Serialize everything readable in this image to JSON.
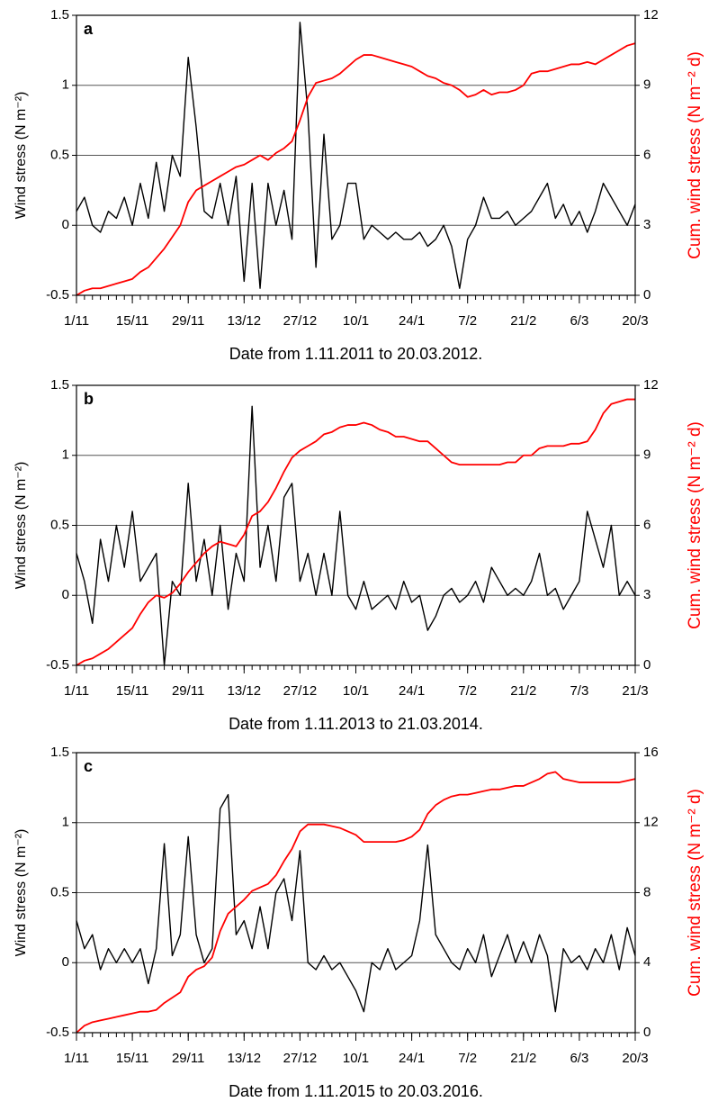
{
  "chart_data": [
    {
      "type": "line",
      "title": "a",
      "xlabel": "Date from 1.11.2011 to 20.03.2012.",
      "ylabel": "Wind stress (N m⁻²)",
      "y2label": "Cum. wind stress (N m⁻² d)",
      "x": [
        "1/11",
        "3/11",
        "5/11",
        "7/11",
        "9/11",
        "11/11",
        "13/11",
        "15/11",
        "17/11",
        "19/11",
        "21/11",
        "23/11",
        "25/11",
        "27/11",
        "29/11",
        "1/12",
        "3/12",
        "5/12",
        "7/12",
        "9/12",
        "11/12",
        "13/12",
        "15/12",
        "17/12",
        "19/12",
        "21/12",
        "23/12",
        "25/12",
        "27/12",
        "29/12",
        "31/12",
        "2/1",
        "4/1",
        "6/1",
        "8/1",
        "10/1",
        "12/1",
        "14/1",
        "16/1",
        "18/1",
        "20/1",
        "22/1",
        "24/1",
        "26/1",
        "28/1",
        "30/1",
        "1/2",
        "3/2",
        "5/2",
        "7/2",
        "9/2",
        "11/2",
        "13/2",
        "15/2",
        "17/2",
        "19/2",
        "21/2",
        "23/2",
        "25/2",
        "27/2",
        "29/2",
        "2/3",
        "4/3",
        "6/3",
        "8/3",
        "10/3",
        "12/3",
        "14/3",
        "16/3",
        "18/3",
        "20/3"
      ],
      "xticks": [
        "1/11",
        "15/11",
        "29/11",
        "13/12",
        "27/12",
        "10/1",
        "24/1",
        "7/2",
        "21/2",
        "6/3",
        "20/3"
      ],
      "ylim": [
        -0.5,
        1.5
      ],
      "yticks": [
        -0.5,
        0,
        0.5,
        1,
        1.5
      ],
      "y2lim": [
        0,
        12
      ],
      "y2ticks": [
        0,
        3,
        6,
        9,
        12
      ],
      "grid": true,
      "y2label_color": "#ff0000",
      "series": [
        {
          "color": "#000000",
          "values": [
            0.1,
            0.2,
            0.0,
            -0.05,
            0.1,
            0.05,
            0.2,
            0.0,
            0.3,
            0.05,
            0.45,
            0.1,
            0.5,
            0.35,
            1.2,
            0.7,
            0.1,
            0.05,
            0.3,
            0.0,
            0.35,
            -0.4,
            0.3,
            -0.45,
            0.3,
            0.0,
            0.25,
            -0.1,
            1.45,
            0.8,
            -0.3,
            0.65,
            -0.1,
            0.0,
            0.3,
            0.3,
            -0.1,
            0.0,
            -0.05,
            -0.1,
            -0.05,
            -0.1,
            -0.1,
            -0.05,
            -0.15,
            -0.1,
            0.0,
            -0.15,
            -0.45,
            -0.1,
            0.0,
            0.2,
            0.05,
            0.05,
            0.1,
            0.0,
            0.05,
            0.1,
            0.2,
            0.3,
            0.05,
            0.15,
            0.0,
            0.1,
            -0.05,
            0.1,
            0.3,
            0.2,
            0.1,
            0.0,
            0.15
          ]
        },
        {
          "color": "#ff0000",
          "axis": "y2",
          "values": [
            0,
            0.2,
            0.3,
            0.3,
            0.4,
            0.5,
            0.6,
            0.7,
            1.0,
            1.2,
            1.6,
            2.0,
            2.5,
            3.0,
            4.0,
            4.5,
            4.7,
            4.9,
            5.1,
            5.3,
            5.5,
            5.6,
            5.8,
            6.0,
            5.8,
            6.1,
            6.3,
            6.6,
            7.5,
            8.5,
            9.1,
            9.2,
            9.3,
            9.5,
            9.8,
            10.1,
            10.3,
            10.3,
            10.2,
            10.1,
            10.0,
            9.9,
            9.8,
            9.6,
            9.4,
            9.3,
            9.1,
            9.0,
            8.8,
            8.5,
            8.6,
            8.8,
            8.6,
            8.7,
            8.7,
            8.8,
            9.0,
            9.5,
            9.6,
            9.6,
            9.7,
            9.8,
            9.9,
            9.9,
            10.0,
            9.9,
            10.1,
            10.3,
            10.5,
            10.7,
            10.8
          ]
        }
      ]
    },
    {
      "type": "line",
      "title": "b",
      "xlabel": "Date from 1.11.2013 to 21.03.2014.",
      "ylabel": "Wind stress (N m⁻²)",
      "y2label": "Cum. wind stress (N m⁻² d)",
      "x": [
        "1/11",
        "3/11",
        "5/11",
        "7/11",
        "9/11",
        "11/11",
        "13/11",
        "15/11",
        "17/11",
        "19/11",
        "21/11",
        "23/11",
        "25/11",
        "27/11",
        "29/11",
        "1/12",
        "3/12",
        "5/12",
        "7/12",
        "9/12",
        "11/12",
        "13/12",
        "15/12",
        "17/12",
        "19/12",
        "21/12",
        "23/12",
        "25/12",
        "27/12",
        "29/12",
        "31/12",
        "2/1",
        "4/1",
        "6/1",
        "8/1",
        "10/1",
        "12/1",
        "14/1",
        "16/1",
        "18/1",
        "20/1",
        "22/1",
        "24/1",
        "26/1",
        "28/1",
        "30/1",
        "1/2",
        "3/2",
        "5/2",
        "7/2",
        "9/2",
        "11/2",
        "13/2",
        "15/2",
        "17/2",
        "19/2",
        "21/2",
        "23/2",
        "25/2",
        "27/2",
        "1/3",
        "3/3",
        "5/3",
        "7/3",
        "9/3",
        "11/3",
        "13/3",
        "15/3",
        "17/3",
        "19/3",
        "21/3"
      ],
      "xticks": [
        "1/11",
        "15/11",
        "29/11",
        "13/12",
        "27/12",
        "10/1",
        "24/1",
        "7/2",
        "21/2",
        "7/3",
        "21/3"
      ],
      "ylim": [
        -0.5,
        1.5
      ],
      "yticks": [
        -0.5,
        0,
        0.5,
        1,
        1.5
      ],
      "y2lim": [
        0,
        12
      ],
      "y2ticks": [
        0,
        3,
        6,
        9,
        12
      ],
      "grid": true,
      "y2label_color": "#ff0000",
      "series": [
        {
          "color": "#000000",
          "values": [
            0.3,
            0.1,
            -0.2,
            0.4,
            0.1,
            0.5,
            0.2,
            0.6,
            0.1,
            0.2,
            0.3,
            -0.5,
            0.1,
            0.0,
            0.8,
            0.1,
            0.4,
            0.0,
            0.5,
            -0.1,
            0.3,
            0.1,
            1.35,
            0.2,
            0.5,
            0.1,
            0.7,
            0.8,
            0.1,
            0.3,
            0.0,
            0.3,
            0.0,
            0.6,
            0.0,
            -0.1,
            0.1,
            -0.1,
            -0.05,
            0.0,
            -0.1,
            0.1,
            -0.05,
            0.0,
            -0.25,
            -0.15,
            0.0,
            0.05,
            -0.05,
            0.0,
            0.1,
            -0.05,
            0.2,
            0.1,
            0.0,
            0.05,
            0.0,
            0.1,
            0.3,
            0.0,
            0.05,
            -0.1,
            0.0,
            0.1,
            0.6,
            0.4,
            0.2,
            0.5,
            0.0,
            0.1,
            0.0
          ]
        },
        {
          "color": "#ff0000",
          "axis": "y2",
          "values": [
            0,
            0.2,
            0.3,
            0.5,
            0.7,
            1.0,
            1.3,
            1.6,
            2.2,
            2.7,
            3.0,
            2.9,
            3.1,
            3.5,
            4.0,
            4.4,
            4.8,
            5.1,
            5.3,
            5.2,
            5.1,
            5.6,
            6.4,
            6.6,
            7.0,
            7.6,
            8.3,
            8.9,
            9.2,
            9.4,
            9.6,
            9.9,
            10.0,
            10.2,
            10.3,
            10.3,
            10.4,
            10.3,
            10.1,
            10.0,
            9.8,
            9.8,
            9.7,
            9.6,
            9.6,
            9.3,
            9.0,
            8.7,
            8.6,
            8.6,
            8.6,
            8.6,
            8.6,
            8.6,
            8.7,
            8.7,
            9.0,
            9.0,
            9.3,
            9.4,
            9.4,
            9.4,
            9.5,
            9.5,
            9.6,
            10.1,
            10.8,
            11.2,
            11.3,
            11.4,
            11.4
          ]
        }
      ]
    },
    {
      "type": "line",
      "title": "c",
      "xlabel": "Date from 1.11.2015 to 20.03.2016.",
      "ylabel": "Wind stress (N m⁻²)",
      "y2label": "Cum. wind stress (N m⁻² d)",
      "x": [
        "1/11",
        "3/11",
        "5/11",
        "7/11",
        "9/11",
        "11/11",
        "13/11",
        "15/11",
        "17/11",
        "19/11",
        "21/11",
        "23/11",
        "25/11",
        "27/11",
        "29/11",
        "1/12",
        "3/12",
        "5/12",
        "7/12",
        "9/12",
        "11/12",
        "13/12",
        "15/12",
        "17/12",
        "19/12",
        "21/12",
        "23/12",
        "25/12",
        "27/12",
        "29/12",
        "31/12",
        "2/1",
        "4/1",
        "6/1",
        "8/1",
        "10/1",
        "12/1",
        "14/1",
        "16/1",
        "18/1",
        "20/1",
        "22/1",
        "24/1",
        "26/1",
        "28/1",
        "30/1",
        "1/2",
        "3/2",
        "5/2",
        "7/2",
        "9/2",
        "11/2",
        "13/2",
        "15/2",
        "17/2",
        "19/2",
        "21/2",
        "23/2",
        "25/2",
        "27/2",
        "29/2",
        "2/3",
        "4/3",
        "6/3",
        "8/3",
        "10/3",
        "12/3",
        "14/3",
        "16/3",
        "18/3",
        "20/3"
      ],
      "xticks": [
        "1/11",
        "15/11",
        "29/11",
        "13/12",
        "27/12",
        "10/1",
        "24/1",
        "7/2",
        "21/2",
        "6/3",
        "20/3"
      ],
      "ylim": [
        -0.5,
        1.5
      ],
      "yticks": [
        -0.5,
        0,
        0.5,
        1,
        1.5
      ],
      "y2lim": [
        0,
        16
      ],
      "y2ticks": [
        0,
        4,
        8,
        12,
        16
      ],
      "grid": true,
      "y2label_color": "#ff0000",
      "series": [
        {
          "color": "#000000",
          "values": [
            0.3,
            0.1,
            0.2,
            -0.05,
            0.1,
            0.0,
            0.1,
            0.0,
            0.1,
            -0.15,
            0.1,
            0.85,
            0.05,
            0.2,
            0.9,
            0.2,
            0.0,
            0.1,
            1.1,
            1.2,
            0.2,
            0.3,
            0.1,
            0.4,
            0.1,
            0.5,
            0.6,
            0.3,
            0.8,
            0.0,
            -0.05,
            0.05,
            -0.05,
            0.0,
            -0.1,
            -0.2,
            -0.35,
            0.0,
            -0.05,
            0.1,
            -0.05,
            0.0,
            0.05,
            0.3,
            0.84,
            0.2,
            0.1,
            0.0,
            -0.05,
            0.1,
            0.0,
            0.2,
            -0.1,
            0.05,
            0.2,
            0.0,
            0.15,
            0.0,
            0.2,
            0.05,
            -0.35,
            0.1,
            0.0,
            0.05,
            -0.05,
            0.1,
            0.0,
            0.2,
            -0.05,
            0.25,
            0.05
          ]
        },
        {
          "color": "#ff0000",
          "axis": "y2",
          "values": [
            0,
            0.4,
            0.6,
            0.7,
            0.8,
            0.9,
            1.0,
            1.1,
            1.2,
            1.2,
            1.3,
            1.7,
            2.0,
            2.3,
            3.2,
            3.6,
            3.8,
            4.3,
            5.8,
            6.8,
            7.2,
            7.6,
            8.1,
            8.3,
            8.5,
            9.0,
            9.8,
            10.5,
            11.5,
            11.9,
            11.9,
            11.9,
            11.8,
            11.7,
            11.5,
            11.3,
            10.9,
            10.9,
            10.9,
            10.9,
            10.9,
            11.0,
            11.2,
            11.6,
            12.5,
            13.0,
            13.3,
            13.5,
            13.6,
            13.6,
            13.7,
            13.8,
            13.9,
            13.9,
            14.0,
            14.1,
            14.1,
            14.3,
            14.5,
            14.8,
            14.9,
            14.5,
            14.4,
            14.3,
            14.3,
            14.3,
            14.3,
            14.3,
            14.3,
            14.4,
            14.5
          ]
        }
      ]
    }
  ]
}
